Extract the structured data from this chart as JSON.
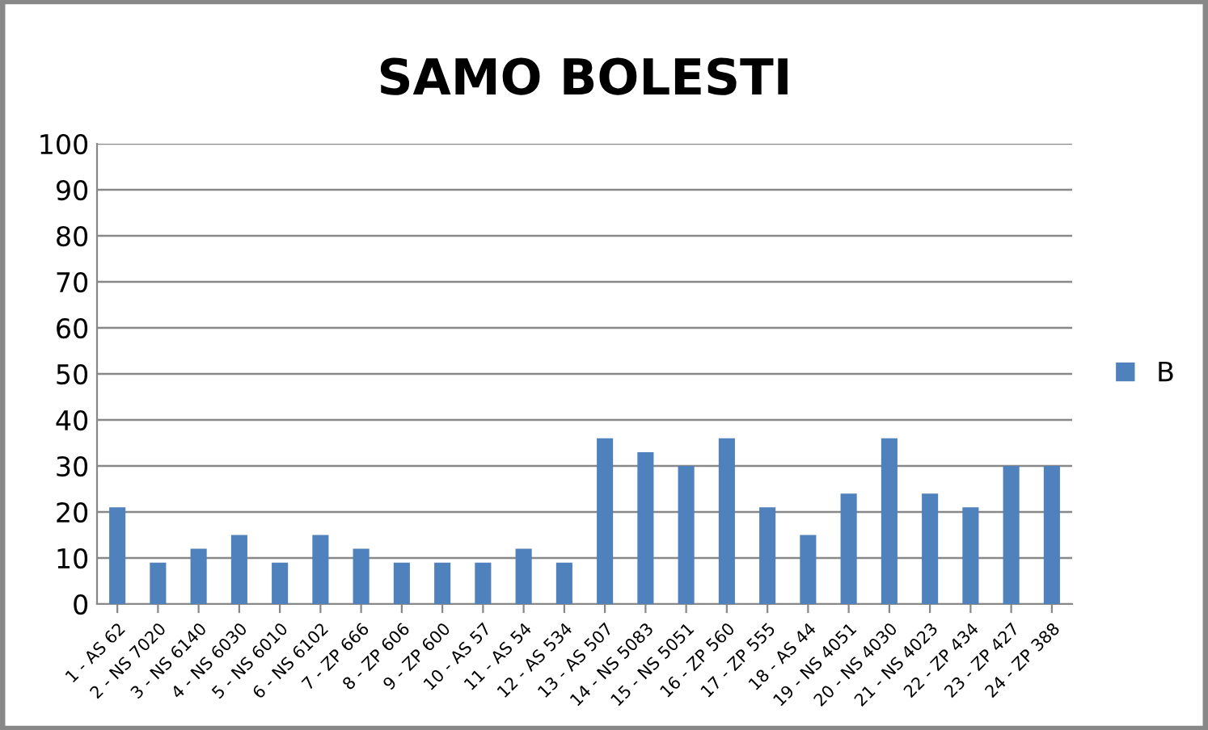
{
  "chart_data": {
    "type": "bar",
    "title": "SAMO BOLESTI",
    "categories": [
      "1 - AS 62",
      "2 - NS 7020",
      "3 - NS 6140",
      "4 - NS 6030",
      "5 - NS 6010",
      "6 - NS 6102",
      "7 - ZP 666",
      "8 - ZP 606",
      "9 - ZP 600",
      "10 - AS 57",
      "11 - AS 54",
      "12 - AS 534",
      "13 - AS 507",
      "14 - NS 5083",
      "15 - NS 5051",
      "16 - ZP 560",
      "17 - ZP 555",
      "18 - AS 44",
      "19 - NS 4051",
      "20 - NS 4030",
      "21 - NS 4023",
      "22 - ZP 434",
      "23 - ZP 427",
      "24 - ZP 388"
    ],
    "series": [
      {
        "name": "B",
        "color": "#4f81bd",
        "values": [
          21,
          9,
          12,
          15,
          9,
          15,
          12,
          9,
          9,
          9,
          12,
          9,
          36,
          33,
          30,
          36,
          21,
          15,
          24,
          36,
          24,
          21,
          30,
          30
        ]
      }
    ],
    "ylim": [
      0,
      100
    ],
    "yticks": [
      0,
      10,
      20,
      30,
      40,
      50,
      60,
      70,
      80,
      90,
      100
    ],
    "grid": "y",
    "legend": "right"
  }
}
